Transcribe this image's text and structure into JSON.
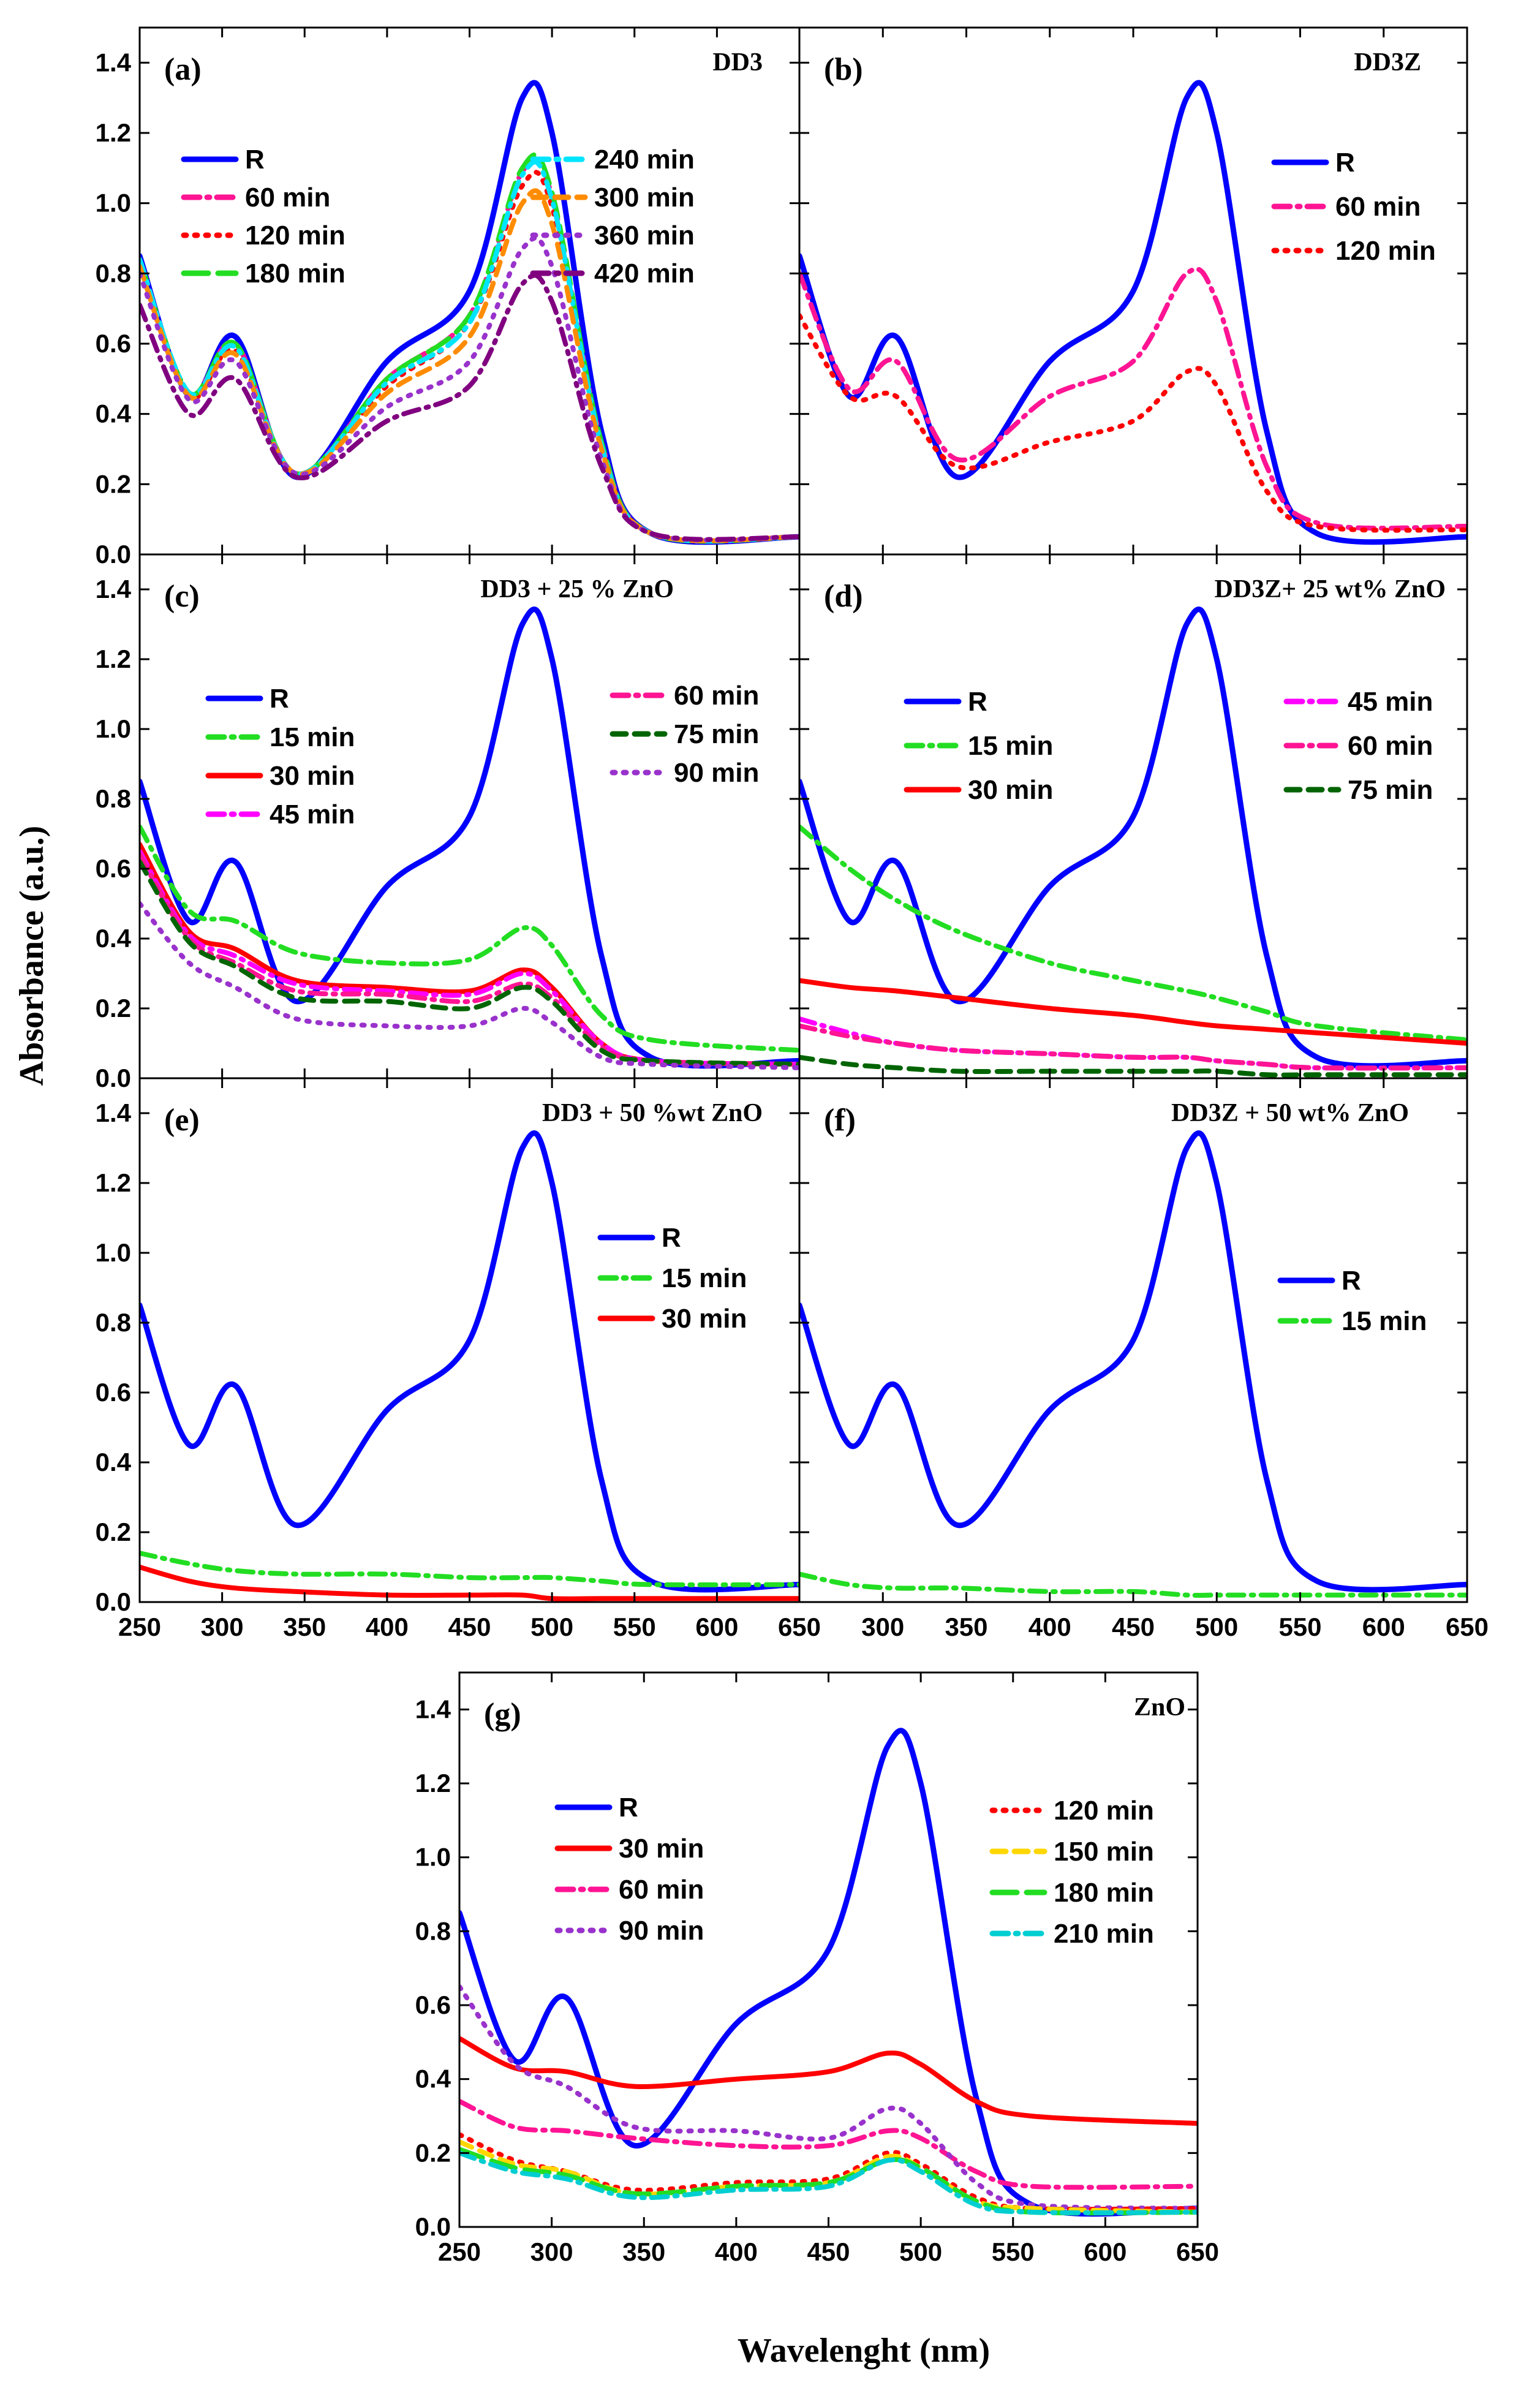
{
  "figure": {
    "ylabel": "Absorbance (a.u.)",
    "xlabel": "Wavelenght (nm)",
    "xticks": [
      "250",
      "300",
      "350",
      "400",
      "450",
      "500",
      "550",
      "600",
      "650"
    ],
    "yticks": [
      "0.0",
      "0.2",
      "0.4",
      "0.6",
      "0.8",
      "1.0",
      "1.2",
      "1.4"
    ]
  },
  "styles": {
    "R": {
      "color": "#0000ff",
      "dash": "solid"
    },
    "15 min": {
      "color": "#22dd22",
      "dash": "dash-dot"
    },
    "30 min": {
      "color": "#ff0000",
      "dash": "solid"
    },
    "45 min": {
      "color": "#ff00ff",
      "dash": "dash-dot"
    },
    "60 min": {
      "color": "#ff1493",
      "dash": "dash-dot"
    },
    "75 min": {
      "color": "#006400",
      "dash": "dash"
    },
    "90 min": {
      "color": "#9932cc",
      "dash": "dot"
    },
    "120 min": {
      "color": "#ff0000",
      "dash": "dot"
    },
    "150 min": {
      "color": "#ffd700",
      "dash": "dash"
    },
    "180 min": {
      "color": "#22dd22",
      "dash": "longdash"
    },
    "210 min": {
      "color": "#00ced1",
      "dash": "dash-dot"
    },
    "240 min": {
      "color": "#00e5ff",
      "dash": "dash-dot"
    },
    "300 min": {
      "color": "#ff8c00",
      "dash": "dash"
    },
    "360 min": {
      "color": "#9932cc",
      "dash": "dot"
    },
    "420 min": {
      "color": "#800080",
      "dash": "dash-dot"
    }
  },
  "chart_data": [
    {
      "type": "line",
      "letter": "(a)",
      "title": "DD3",
      "xlim": [
        250,
        650
      ],
      "ylim": [
        0,
        1.5
      ],
      "x": [
        250,
        280,
        308,
        345,
        400,
        450,
        482,
        500,
        530,
        560,
        650
      ],
      "legend": [
        [
          "R",
          "60 min",
          "120 min",
          "180 min"
        ],
        [
          "240 min",
          "300 min",
          "360 min",
          "420 min"
        ]
      ],
      "series": [
        {
          "name": "R",
          "values": [
            0.85,
            0.45,
            0.62,
            0.22,
            0.55,
            0.75,
            1.3,
            1.2,
            0.35,
            0.06,
            0.05
          ]
        },
        {
          "name": "60 min",
          "values": [
            0.84,
            0.46,
            0.6,
            0.23,
            0.5,
            0.68,
            1.09,
            1.02,
            0.32,
            0.06,
            0.05
          ]
        },
        {
          "name": "120 min",
          "values": [
            0.84,
            0.45,
            0.58,
            0.23,
            0.48,
            0.66,
            1.05,
            0.99,
            0.31,
            0.06,
            0.05
          ]
        },
        {
          "name": "180 min",
          "values": [
            0.84,
            0.46,
            0.6,
            0.23,
            0.5,
            0.68,
            1.1,
            1.03,
            0.32,
            0.06,
            0.05
          ]
        },
        {
          "name": "240 min",
          "values": [
            0.84,
            0.46,
            0.59,
            0.23,
            0.49,
            0.66,
            1.08,
            1.01,
            0.31,
            0.06,
            0.05
          ]
        },
        {
          "name": "300 min",
          "values": [
            0.82,
            0.45,
            0.57,
            0.23,
            0.46,
            0.62,
            1.0,
            0.94,
            0.3,
            0.06,
            0.05
          ]
        },
        {
          "name": "360 min",
          "values": [
            0.8,
            0.44,
            0.55,
            0.23,
            0.42,
            0.55,
            0.87,
            0.82,
            0.27,
            0.06,
            0.05
          ]
        },
        {
          "name": "420 min",
          "values": [
            0.71,
            0.4,
            0.5,
            0.22,
            0.38,
            0.48,
            0.77,
            0.72,
            0.25,
            0.06,
            0.05
          ]
        }
      ]
    },
    {
      "type": "line",
      "letter": "(b)",
      "title": "DD3Z",
      "xlim": [
        250,
        650
      ],
      "ylim": [
        0,
        1.5
      ],
      "x": [
        250,
        280,
        308,
        345,
        400,
        450,
        482,
        500,
        530,
        560,
        650
      ],
      "legend": [
        [
          "R",
          "60 min",
          "120 min"
        ]
      ],
      "series": [
        {
          "name": "R",
          "values": [
            0.85,
            0.45,
            0.62,
            0.22,
            0.55,
            0.75,
            1.3,
            1.2,
            0.35,
            0.06,
            0.05
          ]
        },
        {
          "name": "60 min",
          "values": [
            0.8,
            0.47,
            0.55,
            0.27,
            0.45,
            0.55,
            0.8,
            0.72,
            0.25,
            0.09,
            0.08
          ]
        },
        {
          "name": "120 min",
          "values": [
            0.68,
            0.45,
            0.45,
            0.25,
            0.32,
            0.38,
            0.52,
            0.48,
            0.18,
            0.08,
            0.07
          ]
        }
      ]
    },
    {
      "type": "line",
      "letter": "(c)",
      "title": "DD3 + 25 % ZnO",
      "xlim": [
        250,
        650
      ],
      "ylim": [
        0,
        1.5
      ],
      "x": [
        250,
        280,
        308,
        345,
        400,
        450,
        482,
        500,
        530,
        560,
        650
      ],
      "legend": [
        [
          "R",
          "15 min",
          "30 min",
          "45 min"
        ],
        [
          "60 min",
          "75 min",
          "90 min"
        ]
      ],
      "series": [
        {
          "name": "R",
          "values": [
            0.85,
            0.45,
            0.62,
            0.22,
            0.55,
            0.75,
            1.3,
            1.2,
            0.35,
            0.06,
            0.05
          ]
        },
        {
          "name": "15 min",
          "values": [
            0.72,
            0.48,
            0.45,
            0.36,
            0.33,
            0.34,
            0.43,
            0.38,
            0.18,
            0.11,
            0.08
          ]
        },
        {
          "name": "30 min",
          "values": [
            0.67,
            0.42,
            0.37,
            0.28,
            0.26,
            0.25,
            0.31,
            0.26,
            0.1,
            0.05,
            0.04
          ]
        },
        {
          "name": "45 min",
          "values": [
            0.65,
            0.41,
            0.35,
            0.27,
            0.25,
            0.24,
            0.3,
            0.25,
            0.1,
            0.05,
            0.04
          ]
        },
        {
          "name": "60 min",
          "values": [
            0.64,
            0.4,
            0.33,
            0.25,
            0.24,
            0.22,
            0.27,
            0.23,
            0.09,
            0.05,
            0.04
          ]
        },
        {
          "name": "75 min",
          "values": [
            0.62,
            0.39,
            0.32,
            0.23,
            0.22,
            0.2,
            0.26,
            0.22,
            0.08,
            0.05,
            0.04
          ]
        },
        {
          "name": "90 min",
          "values": [
            0.5,
            0.33,
            0.26,
            0.17,
            0.15,
            0.15,
            0.2,
            0.16,
            0.06,
            0.04,
            0.03
          ]
        }
      ]
    },
    {
      "type": "line",
      "letter": "(d)",
      "title": "DD3Z+ 25 wt% ZnO",
      "xlim": [
        250,
        650
      ],
      "ylim": [
        0,
        1.5
      ],
      "x": [
        250,
        280,
        308,
        345,
        400,
        450,
        482,
        500,
        530,
        560,
        650
      ],
      "legend": [
        [
          "R",
          "15 min",
          "30 min"
        ],
        [
          "45 min",
          "60 min",
          "75 min"
        ]
      ],
      "series": [
        {
          "name": "R",
          "values": [
            0.85,
            0.45,
            0.62,
            0.22,
            0.55,
            0.75,
            1.3,
            1.2,
            0.35,
            0.06,
            0.05
          ]
        },
        {
          "name": "15 min",
          "values": [
            0.72,
            0.6,
            0.51,
            0.42,
            0.33,
            0.28,
            0.25,
            0.23,
            0.19,
            0.15,
            0.11
          ]
        },
        {
          "name": "30 min",
          "values": [
            0.28,
            0.26,
            0.25,
            0.23,
            0.2,
            0.18,
            0.16,
            0.15,
            0.14,
            0.13,
            0.1
          ]
        },
        {
          "name": "45 min",
          "values": [
            0.17,
            0.13,
            0.1,
            0.08,
            0.07,
            0.06,
            0.06,
            0.05,
            0.04,
            0.03,
            0.03
          ]
        },
        {
          "name": "60 min",
          "values": [
            0.15,
            0.12,
            0.1,
            0.08,
            0.07,
            0.06,
            0.06,
            0.05,
            0.04,
            0.03,
            0.03
          ]
        },
        {
          "name": "75 min",
          "values": [
            0.06,
            0.04,
            0.03,
            0.02,
            0.02,
            0.02,
            0.02,
            0.02,
            0.01,
            0.01,
            0.01
          ]
        }
      ]
    },
    {
      "type": "line",
      "letter": "(e)",
      "title": "DD3 + 50 %wt ZnO",
      "xlim": [
        250,
        650
      ],
      "ylim": [
        0,
        1.5
      ],
      "x": [
        250,
        280,
        308,
        345,
        400,
        450,
        482,
        500,
        530,
        560,
        650
      ],
      "legend": [
        [
          "R",
          "15 min",
          "30 min"
        ]
      ],
      "series": [
        {
          "name": "R",
          "values": [
            0.85,
            0.45,
            0.62,
            0.22,
            0.55,
            0.75,
            1.3,
            1.2,
            0.35,
            0.06,
            0.05
          ]
        },
        {
          "name": "15 min",
          "values": [
            0.14,
            0.11,
            0.09,
            0.08,
            0.08,
            0.07,
            0.07,
            0.07,
            0.06,
            0.05,
            0.05
          ]
        },
        {
          "name": "30 min",
          "values": [
            0.1,
            0.06,
            0.04,
            0.03,
            0.02,
            0.02,
            0.02,
            0.01,
            0.01,
            0.01,
            0.01
          ]
        }
      ]
    },
    {
      "type": "line",
      "letter": "(f)",
      "title": "DD3Z + 50 wt% ZnO",
      "xlim": [
        250,
        650
      ],
      "ylim": [
        0,
        1.5
      ],
      "x": [
        250,
        280,
        308,
        345,
        400,
        450,
        482,
        500,
        530,
        560,
        650
      ],
      "legend": [
        [
          "R",
          "15 min"
        ]
      ],
      "series": [
        {
          "name": "R",
          "values": [
            0.85,
            0.45,
            0.62,
            0.22,
            0.55,
            0.75,
            1.3,
            1.2,
            0.35,
            0.06,
            0.05
          ]
        },
        {
          "name": "15 min",
          "values": [
            0.08,
            0.05,
            0.04,
            0.04,
            0.03,
            0.03,
            0.02,
            0.02,
            0.02,
            0.02,
            0.02
          ]
        }
      ]
    },
    {
      "type": "line",
      "letter": "(g)",
      "title": "ZnO",
      "xlim": [
        250,
        650
      ],
      "ylim": [
        0,
        1.5
      ],
      "x": [
        250,
        280,
        308,
        345,
        400,
        450,
        482,
        500,
        530,
        560,
        650
      ],
      "legend": [
        [
          "R",
          "30 min",
          "60 min",
          "90 min"
        ],
        [
          "120 min",
          "150 min",
          "180 min",
          "210 min"
        ]
      ],
      "series": [
        {
          "name": "R",
          "values": [
            0.85,
            0.45,
            0.62,
            0.22,
            0.55,
            0.75,
            1.3,
            1.2,
            0.35,
            0.06,
            0.05
          ]
        },
        {
          "name": "30 min",
          "values": [
            0.51,
            0.43,
            0.42,
            0.38,
            0.4,
            0.42,
            0.47,
            0.44,
            0.34,
            0.3,
            0.28
          ]
        },
        {
          "name": "60 min",
          "values": [
            0.34,
            0.27,
            0.26,
            0.24,
            0.22,
            0.22,
            0.26,
            0.24,
            0.15,
            0.11,
            0.11
          ]
        },
        {
          "name": "90 min",
          "values": [
            0.65,
            0.44,
            0.38,
            0.27,
            0.26,
            0.24,
            0.32,
            0.28,
            0.12,
            0.06,
            0.05
          ]
        },
        {
          "name": "120 min",
          "values": [
            0.25,
            0.18,
            0.15,
            0.1,
            0.12,
            0.13,
            0.2,
            0.17,
            0.08,
            0.05,
            0.05
          ]
        },
        {
          "name": "150 min",
          "values": [
            0.23,
            0.17,
            0.15,
            0.09,
            0.11,
            0.12,
            0.19,
            0.16,
            0.07,
            0.05,
            0.04
          ]
        },
        {
          "name": "180 min",
          "values": [
            0.21,
            0.16,
            0.14,
            0.09,
            0.11,
            0.12,
            0.18,
            0.16,
            0.07,
            0.04,
            0.04
          ]
        },
        {
          "name": "210 min",
          "values": [
            0.2,
            0.15,
            0.13,
            0.08,
            0.1,
            0.11,
            0.18,
            0.15,
            0.06,
            0.04,
            0.04
          ]
        }
      ]
    }
  ]
}
